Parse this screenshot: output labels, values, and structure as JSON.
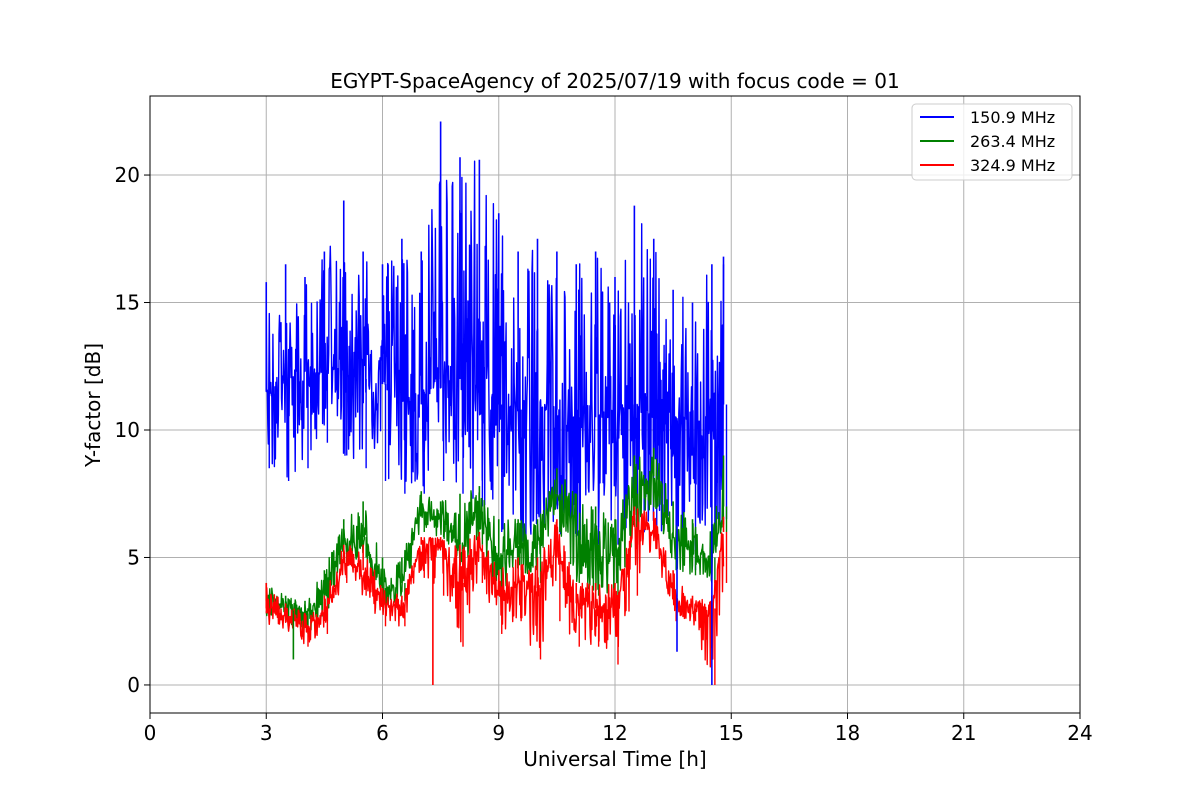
{
  "chart_data": {
    "type": "line",
    "title": "EGYPT-SpaceAgency of 2025/07/19 with focus code = 01",
    "xlabel": "Universal Time [h]",
    "ylabel": "Y-factor [dB]",
    "xlim": [
      0,
      24
    ],
    "ylim": [
      -1.1,
      23.1
    ],
    "xticks": [
      0,
      3,
      6,
      9,
      12,
      15,
      18,
      21,
      24
    ],
    "yticks": [
      0,
      5,
      10,
      15,
      20
    ],
    "xtick_labels": [
      "0",
      "3",
      "6",
      "9",
      "12",
      "15",
      "18",
      "21",
      "24"
    ],
    "ytick_labels": [
      "0",
      "5",
      "10",
      "15",
      "20"
    ],
    "grid": true,
    "legend_position": "top-right",
    "series": [
      {
        "name": "150.9 MHz",
        "color": "#0000ff",
        "x": [
          3.0,
          3.5,
          4.0,
          4.5,
          5.0,
          5.5,
          6.0,
          6.5,
          7.0,
          7.5,
          8.0,
          8.5,
          9.0,
          9.5,
          10.0,
          10.5,
          11.0,
          11.5,
          12.0,
          12.5,
          13.0,
          13.5,
          14.0,
          14.5,
          14.8
        ],
        "mean": [
          11.5,
          12.0,
          12.3,
          12.5,
          12.3,
          12.0,
          11.8,
          11.5,
          11.5,
          12.0,
          12.0,
          11.5,
          11.0,
          10.8,
          10.8,
          10.8,
          10.5,
          10.5,
          10.5,
          11.0,
          11.0,
          10.5,
          10.3,
          10.5,
          11.0
        ],
        "min": [
          8.5,
          8.0,
          8.5,
          9.5,
          9.0,
          8.5,
          8.0,
          7.5,
          7.5,
          8.0,
          7.5,
          7.0,
          6.0,
          5.5,
          6.0,
          6.0,
          5.5,
          5.5,
          5.5,
          6.0,
          6.0,
          5.5,
          4.5,
          5.5,
          6.5
        ],
        "max": [
          15.8,
          16.5,
          16.0,
          17.0,
          19.0,
          17.0,
          16.5,
          17.5,
          17.0,
          22.1,
          20.7,
          20.6,
          18.5,
          17.0,
          17.5,
          17.0,
          16.5,
          17.0,
          16.0,
          18.8,
          17.5,
          15.5,
          15.0,
          16.5,
          16.8
        ]
      },
      {
        "name": "263.4 MHz",
        "color": "#008000",
        "x": [
          3.0,
          3.5,
          4.0,
          4.5,
          5.0,
          5.5,
          6.0,
          6.5,
          7.0,
          7.5,
          8.0,
          8.5,
          9.0,
          9.5,
          10.0,
          10.5,
          11.0,
          11.5,
          12.0,
          12.5,
          13.0,
          13.5,
          14.0,
          14.5,
          14.8
        ],
        "mean": [
          3.3,
          3.0,
          2.8,
          3.5,
          5.5,
          5.8,
          3.8,
          4.0,
          6.8,
          6.5,
          5.5,
          6.8,
          5.0,
          5.5,
          5.5,
          7.5,
          5.8,
          5.5,
          5.0,
          7.5,
          8.2,
          5.8,
          5.3,
          5.0,
          7.0
        ],
        "min": [
          2.7,
          2.5,
          2.0,
          2.5,
          4.8,
          5.0,
          3.0,
          3.3,
          6.0,
          5.8,
          4.5,
          5.5,
          3.5,
          4.5,
          4.0,
          6.0,
          4.0,
          3.5,
          3.5,
          5.5,
          7.0,
          4.5,
          4.3,
          4.0,
          6.0
        ],
        "max": [
          4.0,
          3.5,
          3.3,
          4.5,
          6.5,
          7.2,
          5.0,
          5.0,
          7.6,
          7.2,
          7.5,
          7.8,
          6.5,
          6.5,
          6.5,
          8.5,
          7.5,
          7.0,
          6.5,
          9.0,
          9.3,
          7.2,
          6.5,
          6.3,
          9.0
        ]
      },
      {
        "name": "324.9 MHz",
        "color": "#ff0000",
        "x": [
          3.0,
          3.5,
          4.0,
          4.5,
          5.0,
          5.5,
          6.0,
          6.5,
          7.0,
          7.5,
          8.0,
          8.5,
          9.0,
          9.5,
          10.0,
          10.5,
          11.0,
          11.5,
          12.0,
          12.5,
          13.0,
          13.5,
          14.0,
          14.5,
          14.8
        ],
        "mean": [
          3.0,
          2.7,
          2.3,
          2.8,
          4.8,
          4.5,
          3.2,
          3.0,
          5.5,
          5.5,
          4.0,
          5.5,
          3.5,
          4.0,
          3.8,
          5.0,
          3.2,
          3.0,
          3.0,
          6.2,
          6.0,
          3.5,
          3.0,
          3.0,
          6.0
        ],
        "min": [
          2.4,
          2.2,
          1.5,
          2.0,
          4.0,
          3.5,
          2.3,
          2.3,
          4.2,
          3.5,
          1.5,
          4.0,
          2.0,
          2.5,
          1.0,
          2.5,
          1.5,
          1.5,
          0.8,
          3.5,
          5.5,
          2.5,
          2.5,
          0.0,
          4.0
        ],
        "max": [
          4.0,
          3.2,
          2.8,
          3.5,
          5.5,
          5.5,
          3.8,
          3.5,
          5.8,
          5.8,
          5.5,
          6.0,
          4.5,
          5.0,
          5.0,
          6.5,
          4.0,
          4.0,
          4.0,
          7.0,
          6.8,
          4.5,
          3.5,
          3.5,
          6.6
        ]
      }
    ],
    "annotations": [
      {
        "series": "324.9 MHz",
        "x": 7.3,
        "y": 0.0
      },
      {
        "series": "150.9 MHz",
        "x": 14.5,
        "y": 0.0
      },
      {
        "series": "263.4 MHz",
        "x": 3.7,
        "y": 1.0
      },
      {
        "series": "150.9 MHz",
        "x": 13.6,
        "y": 1.3
      }
    ]
  }
}
